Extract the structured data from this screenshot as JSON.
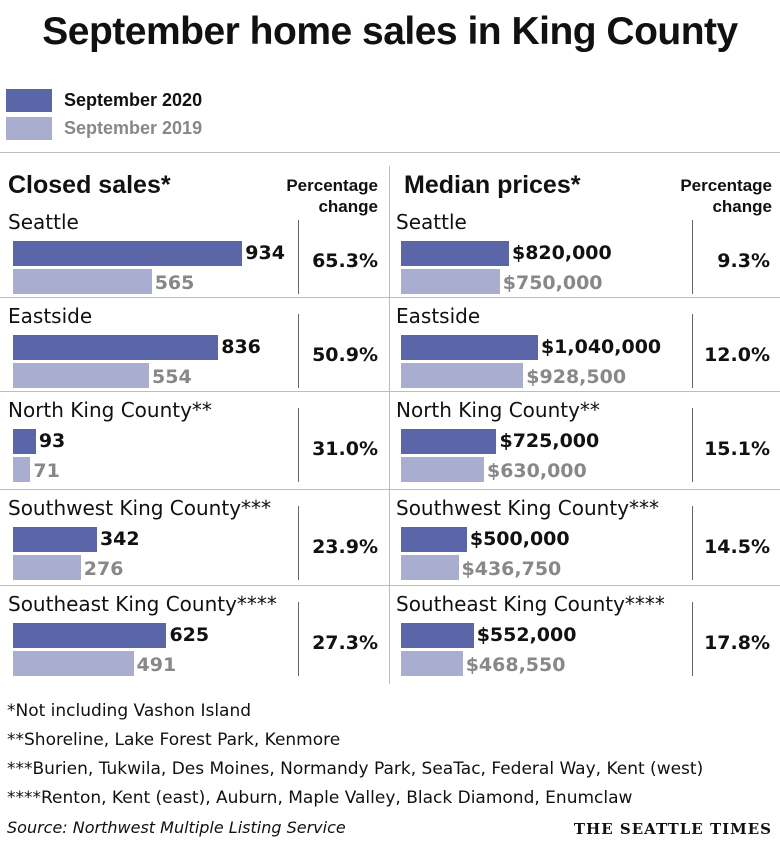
{
  "title": "September home sales in King County",
  "legend": {
    "current": "September 2020",
    "previous": "September 2019"
  },
  "colors": {
    "current": "#5a66a7",
    "previous": "#a9aed1"
  },
  "panels": {
    "closed": {
      "title": "Closed sales*",
      "pct_header": [
        "Percentage",
        "change"
      ]
    },
    "median": {
      "title": "Median prices*",
      "pct_header": [
        "Percentage",
        "change"
      ]
    }
  },
  "chart_data": [
    {
      "type": "bar",
      "title": "Closed sales*",
      "categories": [
        "Seattle",
        "Eastside",
        "North King County**",
        "Southwest King County***",
        "Southeast King County****"
      ],
      "series": [
        {
          "name": "September 2020",
          "values": [
            934,
            836,
            93,
            342,
            625
          ],
          "labels": [
            "934",
            "836",
            "93",
            "342",
            "625"
          ]
        },
        {
          "name": "September 2019",
          "values": [
            565,
            554,
            71,
            276,
            491
          ],
          "labels": [
            "565",
            "554",
            "71",
            "276",
            "491"
          ]
        }
      ],
      "pct_change": [
        "65.3%",
        "50.9%",
        "31.0%",
        "23.9%",
        "27.3%"
      ]
    },
    {
      "type": "bar",
      "title": "Median prices*",
      "categories": [
        "Seattle",
        "Eastside",
        "North King County**",
        "Southwest King County***",
        "Southeast King County****"
      ],
      "series": [
        {
          "name": "September 2020",
          "values": [
            820000,
            1040000,
            725000,
            500000,
            552000
          ],
          "labels": [
            "$820,000",
            "$1,040,000",
            "$725,000",
            "$500,000",
            "$552,000"
          ]
        },
        {
          "name": "September 2019",
          "values": [
            750000,
            928500,
            630000,
            436750,
            468550
          ],
          "labels": [
            "$750,000",
            "$928,500",
            "$630,000",
            "$436,750",
            "$468,550"
          ]
        }
      ],
      "pct_change": [
        "9.3%",
        "12.0%",
        "15.1%",
        "14.5%",
        "17.8%"
      ]
    }
  ],
  "footnotes": [
    "*Not including Vashon Island",
    "**Shoreline, Lake Forest Park, Kenmore",
    "***Burien, Tukwila, Des Moines, Normandy Park, SeaTac, Federal Way, Kent (west)",
    "****Renton, Kent (east), Auburn, Maple Valley, Black Diamond, Enumclaw"
  ],
  "source": "Source: Northwest Multiple Listing Service",
  "brand": "THE SEATTLE TIMES"
}
